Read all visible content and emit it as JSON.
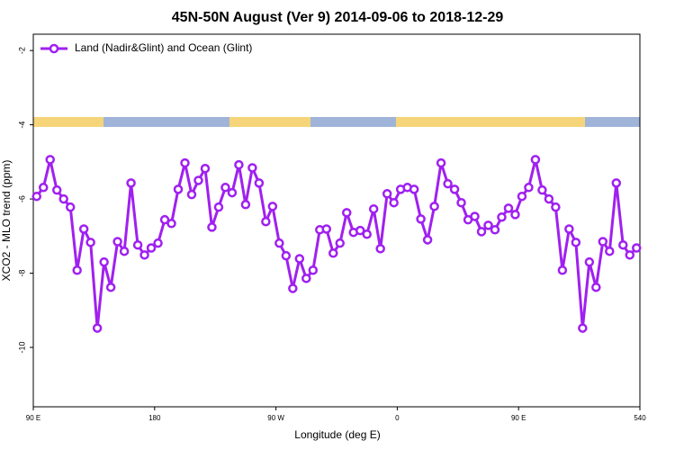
{
  "chart_data": {
    "type": "line",
    "title": "45N-50N August (Ver 9)   2014-09-06 to 2018-12-29",
    "x_label": "Longitude (deg E)",
    "y_label": "XCO2 - MLO trend (ppm)",
    "legend_position": "top-left",
    "xlim": [
      90,
      540
    ],
    "ylim": [
      -11.6,
      -1.56
    ],
    "xticks": [
      {
        "value": 90,
        "label": "90 E"
      },
      180,
      {
        "value": 270,
        "label": "90 W"
      },
      {
        "value": 360,
        "label": "0"
      },
      {
        "value": 450,
        "label": "90 E"
      },
      540
    ],
    "yticks": [
      -2,
      -4,
      -6,
      -8,
      -10
    ],
    "x": [
      92.5,
      97.5,
      102.5,
      107.5,
      112.5,
      117.5,
      122.5,
      127.5,
      132.5,
      137.5,
      142.5,
      147.5,
      152.5,
      157.5,
      162.5,
      167.5,
      172.5,
      177.5,
      182.5,
      187.5,
      192.5,
      197.5,
      202.5,
      207.5,
      212.5,
      217.5,
      222.5,
      227.5,
      232.5,
      237.5,
      242.5,
      247.5,
      252.5,
      257.5,
      262.5,
      267.5,
      272.5,
      277.5,
      282.5,
      287.5,
      292.5,
      297.5,
      302.5,
      307.5,
      312.5,
      317.5,
      322.5,
      327.5,
      332.5,
      337.5,
      342.5,
      347.5,
      352.5,
      357.5,
      362.5,
      367.5,
      372.5,
      377.5,
      382.5,
      387.5,
      392.5,
      397.5,
      402.5,
      407.5,
      412.5,
      417.5,
      422.5,
      427.5,
      432.5,
      437.5,
      442.5,
      447.5,
      452.5,
      457.5,
      462.5,
      467.5,
      472.5,
      477.5,
      482.5,
      487.5,
      492.5,
      497.5,
      502.5,
      507.5,
      512.5,
      517.5,
      522.5,
      527.5,
      532.5,
      537.5
    ],
    "series": [
      {
        "name": "Land (Nadir&Glint) and Ocean (Glint)",
        "color": "#a020f0",
        "values": [
          -5.93,
          -5.69,
          -4.94,
          -5.76,
          -6.0,
          -6.22,
          -7.92,
          -6.81,
          -7.17,
          -9.48,
          -7.7,
          -8.38,
          -7.15,
          -7.41,
          -5.57,
          -7.24,
          -7.51,
          -7.32,
          -7.19,
          -6.56,
          -6.66,
          -5.74,
          -5.03,
          -5.88,
          -5.5,
          -5.18,
          -6.76,
          -6.22,
          -5.69,
          -5.83,
          -5.08,
          -6.15,
          -5.16,
          -5.57,
          -6.61,
          -6.2,
          -7.19,
          -7.53,
          -8.41,
          -7.61,
          -8.14,
          -7.92,
          -6.83,
          -6.81,
          -7.46,
          -7.19,
          -6.37,
          -6.9,
          -6.85,
          -6.95,
          -6.27,
          -7.34,
          -5.86,
          -6.1,
          -5.74,
          -5.69,
          -5.74,
          -6.54,
          -7.1,
          -6.2,
          -5.03,
          -5.59,
          -5.74,
          -6.1,
          -6.56,
          -6.47,
          -6.88,
          -6.71,
          -6.83,
          -6.49,
          -6.25,
          -6.42,
          -5.93,
          -5.69,
          -4.94,
          -5.76,
          -6.0,
          -6.22,
          -7.92,
          -6.81,
          -7.17,
          -9.48,
          -7.7,
          -8.38,
          -7.15,
          -7.41,
          -5.57,
          -7.24,
          -7.51,
          -7.32
        ]
      }
    ]
  }
}
